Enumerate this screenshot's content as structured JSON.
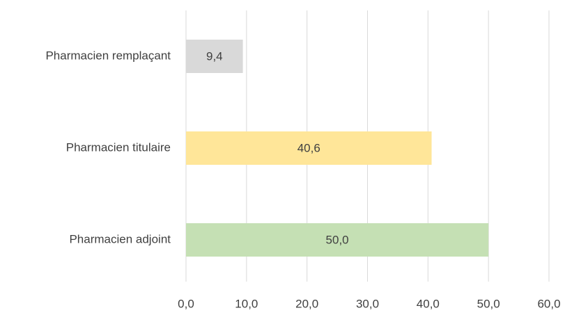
{
  "chart_data": {
    "type": "barh",
    "categories": [
      "Pharmacien remplaçant",
      "Pharmacien titulaire",
      "Pharmacien adjoint"
    ],
    "values": [
      9.4,
      40.6,
      50.0
    ],
    "value_labels": [
      "9,4",
      "40,6",
      "50,0"
    ],
    "colors": [
      "#d9d9d9",
      "#ffe699",
      "#c5e0b4"
    ],
    "xlim": [
      0,
      60
    ],
    "xticks": [
      {
        "value": 0,
        "label": "0,0"
      },
      {
        "value": 10,
        "label": "10,0"
      },
      {
        "value": 20,
        "label": "20,0"
      },
      {
        "value": 30,
        "label": "30,0"
      },
      {
        "value": 40,
        "label": "40,0"
      },
      {
        "value": 50,
        "label": "50,0"
      },
      {
        "value": 60,
        "label": "60,0"
      }
    ],
    "grid": true
  }
}
